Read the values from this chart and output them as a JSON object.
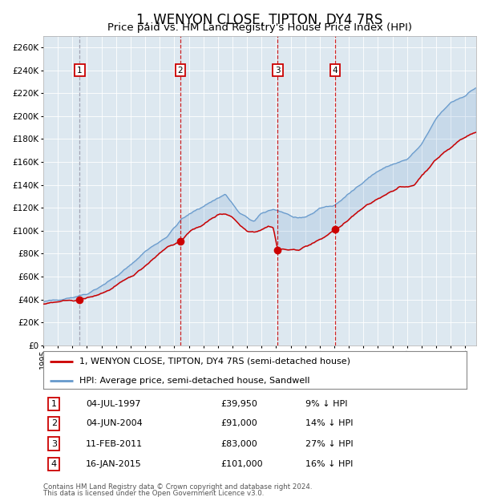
{
  "title": "1, WENYON CLOSE, TIPTON, DY4 7RS",
  "subtitle": "Price paid vs. HM Land Registry's House Price Index (HPI)",
  "legend_line1": "1, WENYON CLOSE, TIPTON, DY4 7RS (semi-detached house)",
  "legend_line2": "HPI: Average price, semi-detached house, Sandwell",
  "footer_line1": "Contains HM Land Registry data © Crown copyright and database right 2024.",
  "footer_line2": "This data is licensed under the Open Government Licence v3.0.",
  "transactions": [
    {
      "num": 1,
      "date": "04-JUL-1997",
      "price": 39950,
      "pct": "9% ↓ HPI"
    },
    {
      "num": 2,
      "date": "04-JUN-2004",
      "price": 91000,
      "pct": "14% ↓ HPI"
    },
    {
      "num": 3,
      "date": "11-FEB-2011",
      "price": 83000,
      "pct": "27% ↓ HPI"
    },
    {
      "num": 4,
      "date": "16-JAN-2015",
      "price": 101000,
      "pct": "16% ↓ HPI"
    }
  ],
  "transaction_dates_decimal": [
    1997.505,
    2004.42,
    2011.11,
    2015.04
  ],
  "hpi_color": "#6699cc",
  "price_color": "#cc0000",
  "vline_color": "#cc0000",
  "vline1_color": "#9999aa",
  "background_color": "#dde8f0",
  "ylim": [
    0,
    270000
  ],
  "ytick_step": 20000,
  "xlim_start": 1995.0,
  "xlim_end": 2024.75
}
